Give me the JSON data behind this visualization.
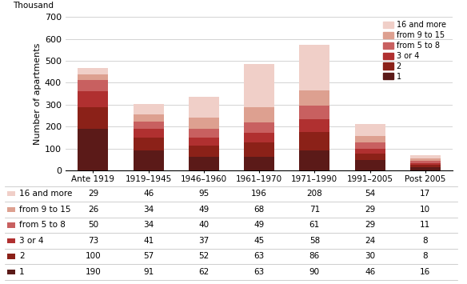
{
  "categories": [
    "Ante 1919",
    "1919–1945",
    "1946–1960",
    "1961–1970",
    "1971–1990",
    "1991–2005",
    "Post 2005"
  ],
  "series": {
    "1": [
      190,
      91,
      62,
      63,
      90,
      46,
      16
    ],
    "2": [
      100,
      57,
      52,
      63,
      86,
      30,
      8
    ],
    "3 or 4": [
      73,
      41,
      37,
      45,
      58,
      24,
      8
    ],
    "from 5 to 8": [
      50,
      34,
      40,
      49,
      61,
      29,
      11
    ],
    "from 9 to 15": [
      26,
      34,
      49,
      68,
      71,
      29,
      10
    ],
    "16 and more": [
      29,
      46,
      95,
      196,
      208,
      54,
      17
    ]
  },
  "colors": {
    "1": "#5b1a18",
    "2": "#8b2118",
    "3 or 4": "#b03030",
    "from 5 to 8": "#c86060",
    "from 9 to 15": "#dda090",
    "16 and more": "#f0cfc8"
  },
  "series_order": [
    "1",
    "2",
    "3 or 4",
    "from 5 to 8",
    "from 9 to 15",
    "16 and more"
  ],
  "legend_order": [
    "16 and more",
    "from 9 to 15",
    "from 5 to 8",
    "3 or 4",
    "2",
    "1"
  ],
  "table_row_order": [
    "16 and more",
    "from 9 to 15",
    "from 5 to 8",
    "3 or 4",
    "2",
    "1"
  ],
  "ylabel": "Number of apartments",
  "ylabel2": "Thousand",
  "ylim": [
    0,
    700
  ],
  "yticks": [
    0,
    100,
    200,
    300,
    400,
    500,
    600,
    700
  ],
  "bar_width": 0.55,
  "grid_color": "#cccccc"
}
